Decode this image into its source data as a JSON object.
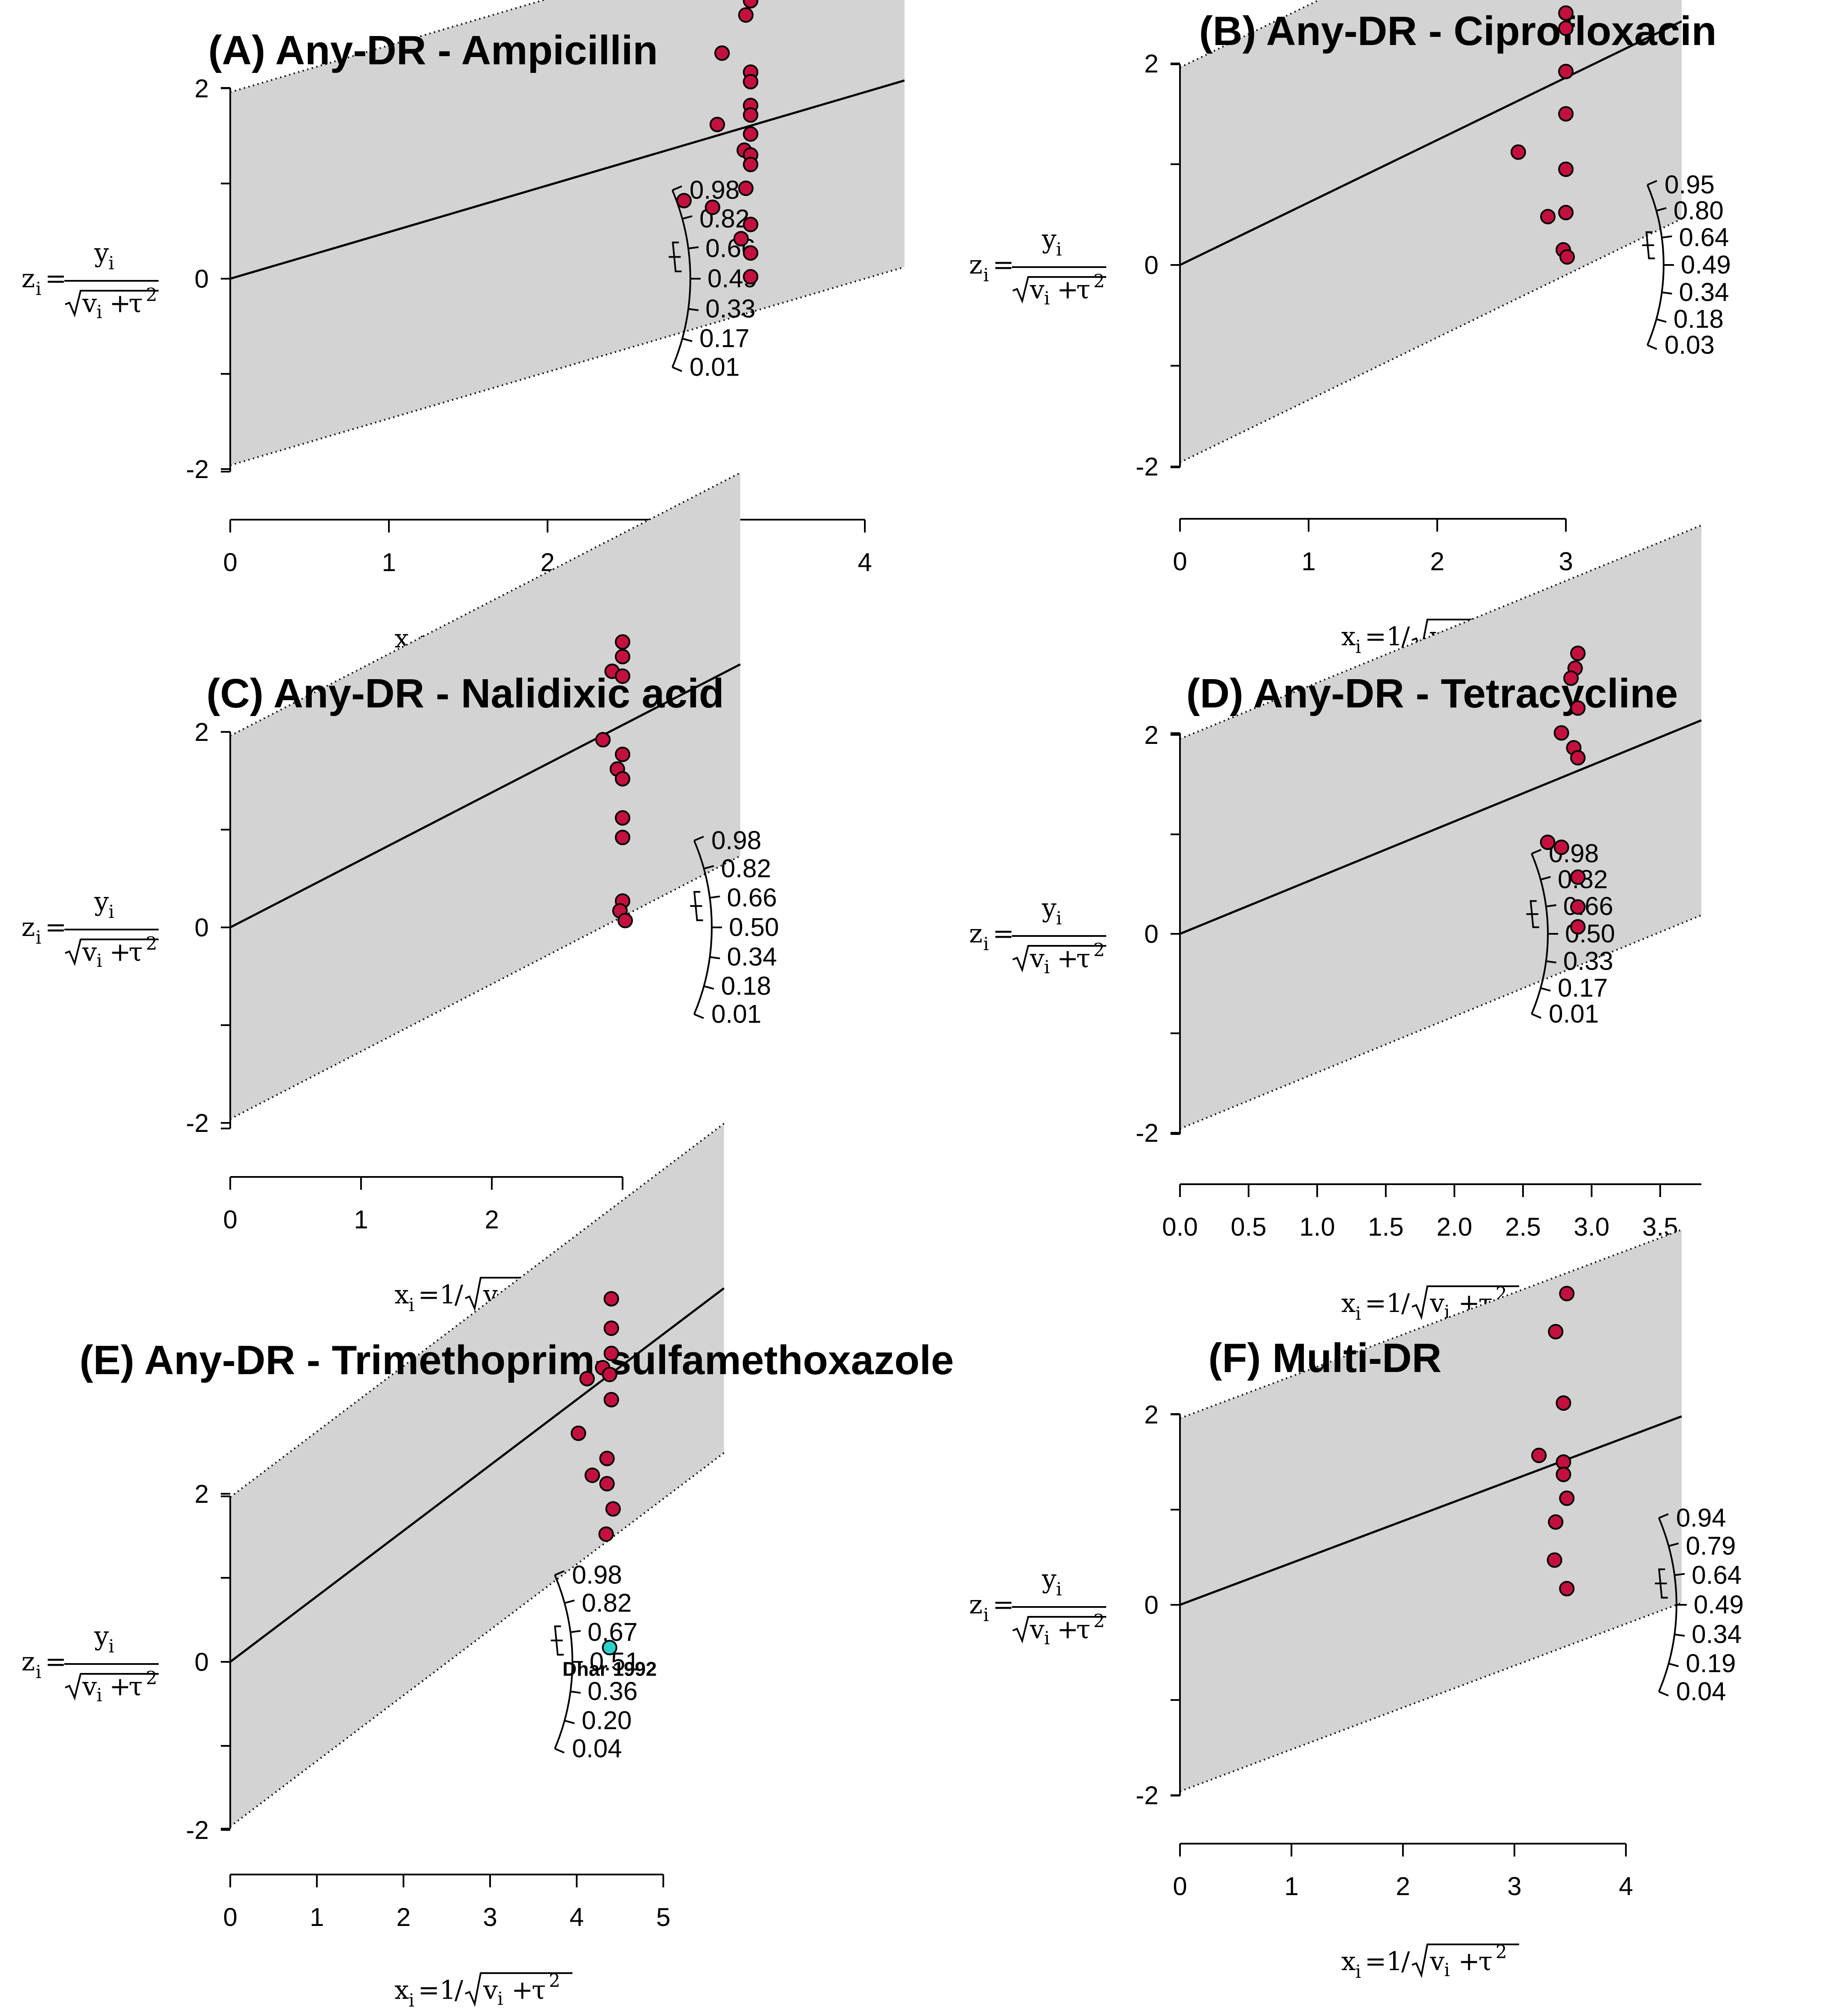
{
  "colors": {
    "band": "#d3d3d3",
    "point_fill": "#c4103f",
    "highlight_fill": "#2ad2cc",
    "line": "#000000"
  },
  "axis_formula": {
    "y": {
      "lhs": "z",
      "lhs_sub": "i",
      "eq": "=",
      "num": "y",
      "num_sub": "i",
      "den": "v",
      "den_sub": "i",
      "den_plus": "+",
      "den_tau": "τ",
      "den_sup": "2"
    },
    "x": {
      "lhs": "x",
      "lhs_sub": "i",
      "eq": "=",
      "one": "1",
      "slash": "/",
      "den": "v",
      "den_sub": "i",
      "den_plus": "+",
      "den_tau": "τ",
      "den_sup": "2"
    }
  },
  "chart_data": [
    {
      "type": "scatter",
      "subtype": "galbraith radial plot",
      "title": "(A) Any-DR - Ampicillin",
      "slope": 0.49,
      "band_halfwidth": 1.96,
      "xlim": [
        0,
        4.25
      ],
      "ylim": [
        -4,
        4
      ],
      "x_ticks": [
        "0",
        "1",
        "2",
        "3",
        "4"
      ],
      "y_ticks": [
        "-2",
        "0",
        "2"
      ],
      "arc_labels": [
        "0.98",
        "0.82",
        "0.66",
        "0.49",
        "0.33",
        "0.17",
        "0.01"
      ],
      "points": [
        {
          "x": 3.28,
          "y": 3.22
        },
        {
          "x": 3.28,
          "y": 3.07
        },
        {
          "x": 3.28,
          "y": 2.92
        },
        {
          "x": 3.25,
          "y": 2.77
        },
        {
          "x": 3.1,
          "y": 2.37
        },
        {
          "x": 3.28,
          "y": 2.17
        },
        {
          "x": 3.28,
          "y": 2.07
        },
        {
          "x": 3.28,
          "y": 1.82
        },
        {
          "x": 3.28,
          "y": 1.72
        },
        {
          "x": 3.07,
          "y": 1.62
        },
        {
          "x": 3.28,
          "y": 1.52
        },
        {
          "x": 3.24,
          "y": 1.35
        },
        {
          "x": 3.28,
          "y": 1.3
        },
        {
          "x": 3.28,
          "y": 1.2
        },
        {
          "x": 3.25,
          "y": 0.95
        },
        {
          "x": 2.86,
          "y": 0.82
        },
        {
          "x": 3.04,
          "y": 0.75
        },
        {
          "x": 3.28,
          "y": 0.57
        },
        {
          "x": 3.22,
          "y": 0.42
        },
        {
          "x": 3.28,
          "y": 0.27
        },
        {
          "x": 3.28,
          "y": 0.02
        }
      ]
    },
    {
      "type": "scatter",
      "subtype": "galbraith radial plot",
      "title": "(B) Any-DR - Ciprofloxacin",
      "slope": 0.62,
      "band_halfwidth": 1.96,
      "xlim": [
        0,
        3.9
      ],
      "ylim": [
        -4,
        4
      ],
      "x_ticks": [
        "0",
        "1",
        "2",
        "3"
      ],
      "y_ticks": [
        "-2",
        "0",
        "2"
      ],
      "arc_labels": [
        "0.95",
        "0.80",
        "0.64",
        "0.49",
        "0.34",
        "0.18",
        "0.03"
      ],
      "points": [
        {
          "x": 3.0,
          "y": 2.85
        },
        {
          "x": 3.0,
          "y": 2.5
        },
        {
          "x": 3.0,
          "y": 2.35
        },
        {
          "x": 3.0,
          "y": 1.92
        },
        {
          "x": 3.0,
          "y": 1.5
        },
        {
          "x": 2.63,
          "y": 1.12
        },
        {
          "x": 3.0,
          "y": 0.95
        },
        {
          "x": 2.86,
          "y": 0.48
        },
        {
          "x": 3.0,
          "y": 0.52
        },
        {
          "x": 2.98,
          "y": 0.15
        },
        {
          "x": 3.01,
          "y": 0.08
        }
      ]
    },
    {
      "type": "scatter",
      "subtype": "galbraith radial plot",
      "title": "(C) Any-DR - Nalidixic acid",
      "slope": 0.69,
      "band_halfwidth": 1.96,
      "xlim": [
        0,
        3.9
      ],
      "ylim": [
        -4,
        4
      ],
      "x_ticks": [
        "0",
        "1",
        "2",
        "3"
      ],
      "y_ticks": [
        "-2",
        "0",
        "2"
      ],
      "arc_labels": [
        "0.98",
        "0.82",
        "0.66",
        "0.50",
        "0.34",
        "0.18",
        "0.01"
      ],
      "points": [
        {
          "x": 3.0,
          "y": 2.92
        },
        {
          "x": 3.0,
          "y": 2.77
        },
        {
          "x": 2.92,
          "y": 2.62
        },
        {
          "x": 3.0,
          "y": 2.57
        },
        {
          "x": 2.85,
          "y": 1.92
        },
        {
          "x": 3.0,
          "y": 1.77
        },
        {
          "x": 2.96,
          "y": 1.62
        },
        {
          "x": 3.0,
          "y": 1.52
        },
        {
          "x": 3.0,
          "y": 1.12
        },
        {
          "x": 3.0,
          "y": 0.92
        },
        {
          "x": 3.0,
          "y": 0.27
        },
        {
          "x": 2.98,
          "y": 0.17
        },
        {
          "x": 3.02,
          "y": 0.07
        }
      ]
    },
    {
      "type": "scatter",
      "subtype": "galbraith radial plot",
      "title": "(D) Any-DR - Tetracycline",
      "slope": 0.565,
      "band_halfwidth": 1.96,
      "xlim": [
        0,
        3.8
      ],
      "ylim": [
        -4,
        4
      ],
      "x_ticks": [
        "0.0",
        "0.5",
        "1.0",
        "1.5",
        "2.0",
        "2.5",
        "3.0",
        "3.5"
      ],
      "y_ticks": [
        "-2",
        "0",
        "2"
      ],
      "arc_labels": [
        "0.98",
        "0.82",
        "0.66",
        "0.50",
        "0.33",
        "0.17",
        "0.01"
      ],
      "points": [
        {
          "x": 2.9,
          "y": 2.82
        },
        {
          "x": 2.88,
          "y": 2.67
        },
        {
          "x": 2.85,
          "y": 2.57
        },
        {
          "x": 2.9,
          "y": 2.27
        },
        {
          "x": 2.78,
          "y": 2.02
        },
        {
          "x": 2.87,
          "y": 1.87
        },
        {
          "x": 2.9,
          "y": 1.77
        },
        {
          "x": 2.68,
          "y": 0.92
        },
        {
          "x": 2.78,
          "y": 0.87
        },
        {
          "x": 2.9,
          "y": 0.57
        },
        {
          "x": 2.9,
          "y": 0.27
        },
        {
          "x": 2.9,
          "y": 0.07
        }
      ]
    },
    {
      "type": "scatter",
      "subtype": "galbraith radial plot",
      "title": "(E) Any-DR - Trimethoprim-sulfamethoxazole",
      "slope": 0.78,
      "band_halfwidth": 1.96,
      "xlim": [
        0,
        5.7
      ],
      "ylim": [
        -4,
        4
      ],
      "x_ticks": [
        "0",
        "1",
        "2",
        "3",
        "4",
        "5"
      ],
      "y_ticks": [
        "-2",
        "0",
        "2"
      ],
      "arc_labels": [
        "0.98",
        "0.82",
        "0.67",
        "0.51",
        "0.36",
        "0.20",
        "0.04"
      ],
      "points": [
        {
          "x": 4.4,
          "y": 4.32
        },
        {
          "x": 4.4,
          "y": 3.97
        },
        {
          "x": 4.4,
          "y": 3.67
        },
        {
          "x": 4.3,
          "y": 3.5
        },
        {
          "x": 4.38,
          "y": 3.42
        },
        {
          "x": 4.12,
          "y": 3.37
        },
        {
          "x": 4.4,
          "y": 3.12
        },
        {
          "x": 4.02,
          "y": 2.72
        },
        {
          "x": 4.35,
          "y": 2.42
        },
        {
          "x": 4.18,
          "y": 2.22
        },
        {
          "x": 4.35,
          "y": 2.12
        },
        {
          "x": 4.42,
          "y": 1.82
        },
        {
          "x": 4.34,
          "y": 1.52
        }
      ],
      "highlight": {
        "label": "Dhar 1992",
        "x": 4.38,
        "y": 0.17
      }
    },
    {
      "type": "scatter",
      "subtype": "galbraith radial plot",
      "title": "(F) Multi-DR",
      "slope": 0.44,
      "band_halfwidth": 1.96,
      "xlim": [
        0,
        4.5
      ],
      "ylim": [
        -4,
        4
      ],
      "x_ticks": [
        "0",
        "1",
        "2",
        "3",
        "4"
      ],
      "y_ticks": [
        "-2",
        "0",
        "2"
      ],
      "arc_labels": [
        "0.94",
        "0.79",
        "0.64",
        "0.49",
        "0.34",
        "0.19",
        "0.04"
      ],
      "points": [
        {
          "x": 3.47,
          "y": 3.27
        },
        {
          "x": 3.37,
          "y": 2.87
        },
        {
          "x": 3.44,
          "y": 2.12
        },
        {
          "x": 3.22,
          "y": 1.57
        },
        {
          "x": 3.44,
          "y": 1.5
        },
        {
          "x": 3.44,
          "y": 1.37
        },
        {
          "x": 3.47,
          "y": 1.12
        },
        {
          "x": 3.37,
          "y": 0.87
        },
        {
          "x": 3.36,
          "y": 0.47
        },
        {
          "x": 3.47,
          "y": 0.17
        }
      ]
    }
  ]
}
